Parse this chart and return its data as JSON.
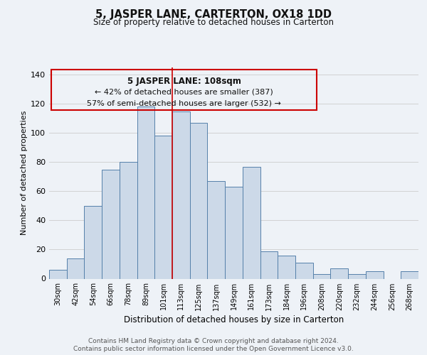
{
  "title": "5, JASPER LANE, CARTERTON, OX18 1DD",
  "subtitle": "Size of property relative to detached houses in Carterton",
  "xlabel": "Distribution of detached houses by size in Carterton",
  "ylabel": "Number of detached properties",
  "categories": [
    "30sqm",
    "42sqm",
    "54sqm",
    "66sqm",
    "78sqm",
    "89sqm",
    "101sqm",
    "113sqm",
    "125sqm",
    "137sqm",
    "149sqm",
    "161sqm",
    "173sqm",
    "184sqm",
    "196sqm",
    "208sqm",
    "220sqm",
    "232sqm",
    "244sqm",
    "256sqm",
    "268sqm"
  ],
  "values": [
    6,
    14,
    50,
    75,
    80,
    118,
    98,
    115,
    107,
    67,
    63,
    77,
    19,
    16,
    11,
    3,
    7,
    3,
    5,
    0,
    5
  ],
  "bar_color": "#ccd9e8",
  "bar_edge_color": "#5580aa",
  "ylim": [
    0,
    145
  ],
  "yticks": [
    0,
    20,
    40,
    60,
    80,
    100,
    120,
    140
  ],
  "property_line_color": "#cc0000",
  "annotation_text_line1": "5 JASPER LANE: 108sqm",
  "annotation_text_line2": "← 42% of detached houses are smaller (387)",
  "annotation_text_line3": "57% of semi-detached houses are larger (532) →",
  "annotation_box_color": "#cc0000",
  "footer_line1": "Contains HM Land Registry data © Crown copyright and database right 2024.",
  "footer_line2": "Contains public sector information licensed under the Open Government Licence v3.0.",
  "background_color": "#eef2f7",
  "grid_color": "#cccccc"
}
